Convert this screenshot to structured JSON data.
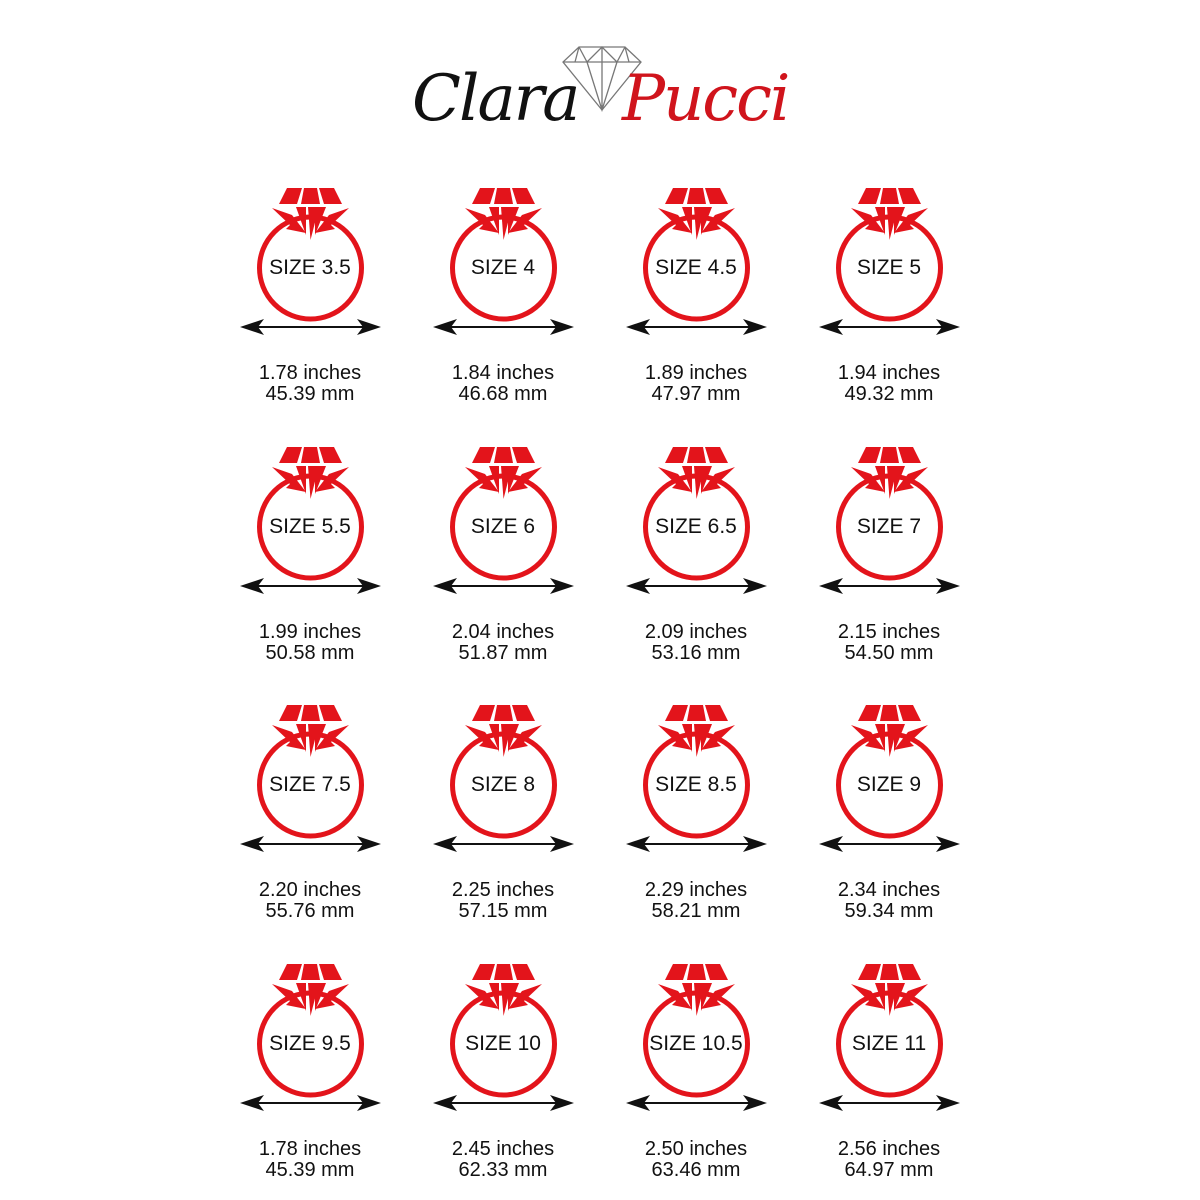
{
  "brand": {
    "first": "Clara",
    "second": "Pucci",
    "logo_icon": "diamond-outline-icon"
  },
  "colors": {
    "ring": "#e3141b",
    "text": "#111111",
    "brand_red": "#d0141c"
  },
  "sizes": [
    {
      "label": "SIZE 3.5",
      "inches": "1.78 inches",
      "mm": "45.39 mm"
    },
    {
      "label": "SIZE 4",
      "inches": "1.84 inches",
      "mm": "46.68 mm"
    },
    {
      "label": "SIZE 4.5",
      "inches": "1.89 inches",
      "mm": "47.97 mm"
    },
    {
      "label": "SIZE 5",
      "inches": "1.94 inches",
      "mm": "49.32 mm"
    },
    {
      "label": "SIZE 5.5",
      "inches": "1.99 inches",
      "mm": "50.58 mm"
    },
    {
      "label": "SIZE 6",
      "inches": "2.04 inches",
      "mm": "51.87 mm"
    },
    {
      "label": "SIZE 6.5",
      "inches": "2.09 inches",
      "mm": "53.16 mm"
    },
    {
      "label": "SIZE 7",
      "inches": "2.15 inches",
      "mm": "54.50 mm"
    },
    {
      "label": "SIZE 7.5",
      "inches": "2.20 inches",
      "mm": "55.76 mm"
    },
    {
      "label": "SIZE 8",
      "inches": "2.25 inches",
      "mm": "57.15 mm"
    },
    {
      "label": "SIZE 8.5",
      "inches": "2.29 inches",
      "mm": "58.21 mm"
    },
    {
      "label": "SIZE 9",
      "inches": "2.34 inches",
      "mm": "59.34 mm"
    },
    {
      "label": "SIZE 9.5",
      "inches": "1.78 inches",
      "mm": "45.39 mm"
    },
    {
      "label": "SIZE 10",
      "inches": "2.45 inches",
      "mm": "62.33 mm"
    },
    {
      "label": "SIZE 10.5",
      "inches": "2.50 inches",
      "mm": "63.46 mm"
    },
    {
      "label": "SIZE 11",
      "inches": "2.56 inches",
      "mm": "64.97 mm"
    }
  ]
}
